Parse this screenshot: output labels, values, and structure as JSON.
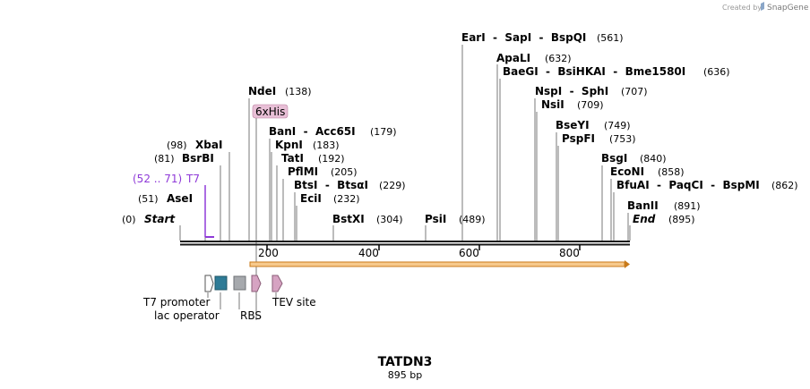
{
  "credit": {
    "prefix": "Created by",
    "brand": "SnapGene"
  },
  "map": {
    "name": "TATDN3",
    "length_label": "895 bp",
    "scale_ticks": [
      "200",
      "400",
      "600",
      "800"
    ]
  },
  "primer": {
    "range": "(52 .. 71)",
    "name": "T7"
  },
  "feature_tag": "6xHis",
  "enzymes": [
    {
      "names": "Start",
      "pos": "(0)"
    },
    {
      "names": "AseI",
      "pos": "(51)"
    },
    {
      "names": "BsrBI",
      "pos": "(81)"
    },
    {
      "names": "XbaI",
      "pos": "(98)"
    },
    {
      "names": "NdeI",
      "pos": "(138)"
    },
    {
      "names": "BanI  -  Acc65I",
      "pos": "(179)"
    },
    {
      "names": "KpnI",
      "pos": "(183)"
    },
    {
      "names": "TatI",
      "pos": "(192)"
    },
    {
      "names": "PflMI",
      "pos": "(205)"
    },
    {
      "names": "BtsI  -  BtsαI",
      "pos": "(229)"
    },
    {
      "names": "EciI",
      "pos": "(232)"
    },
    {
      "names": "BstXI",
      "pos": "(304)"
    },
    {
      "names": "PsiI",
      "pos": "(489)"
    },
    {
      "names": "EarI  -  SapI  -  BspQI",
      "pos": "(561)"
    },
    {
      "names": "ApaLI",
      "pos": "(632)"
    },
    {
      "names": "BaeGI  -  BsiHKAI  -  Bme1580I",
      "pos": "(636)"
    },
    {
      "names": "NspI  -  SphI",
      "pos": "(707)"
    },
    {
      "names": "NsiI",
      "pos": "(709)"
    },
    {
      "names": "BseYI",
      "pos": "(749)"
    },
    {
      "names": "PspFI",
      "pos": "(753)"
    },
    {
      "names": "BsgI",
      "pos": "(840)"
    },
    {
      "names": "EcoNI",
      "pos": "(858)"
    },
    {
      "names": "BfuAI  -  PaqCI  -  BspMI",
      "pos": "(862)"
    },
    {
      "names": "BanII",
      "pos": "(891)"
    },
    {
      "names": "End",
      "pos": "(895)"
    }
  ],
  "features": {
    "t7_promoter": "T7 promoter",
    "lac_operator": "lac operator",
    "rbs": "RBS",
    "tev_site": "TEV site"
  },
  "colors": {
    "orf_fill": "#f7c98c",
    "orf_stroke": "#c87a1a",
    "lac": "#2e7b96",
    "rbs": "#a6a9ad",
    "tev": "#d6a3c2",
    "tag_fill": "#e8bfd6",
    "primer": "#8f3ad8"
  }
}
